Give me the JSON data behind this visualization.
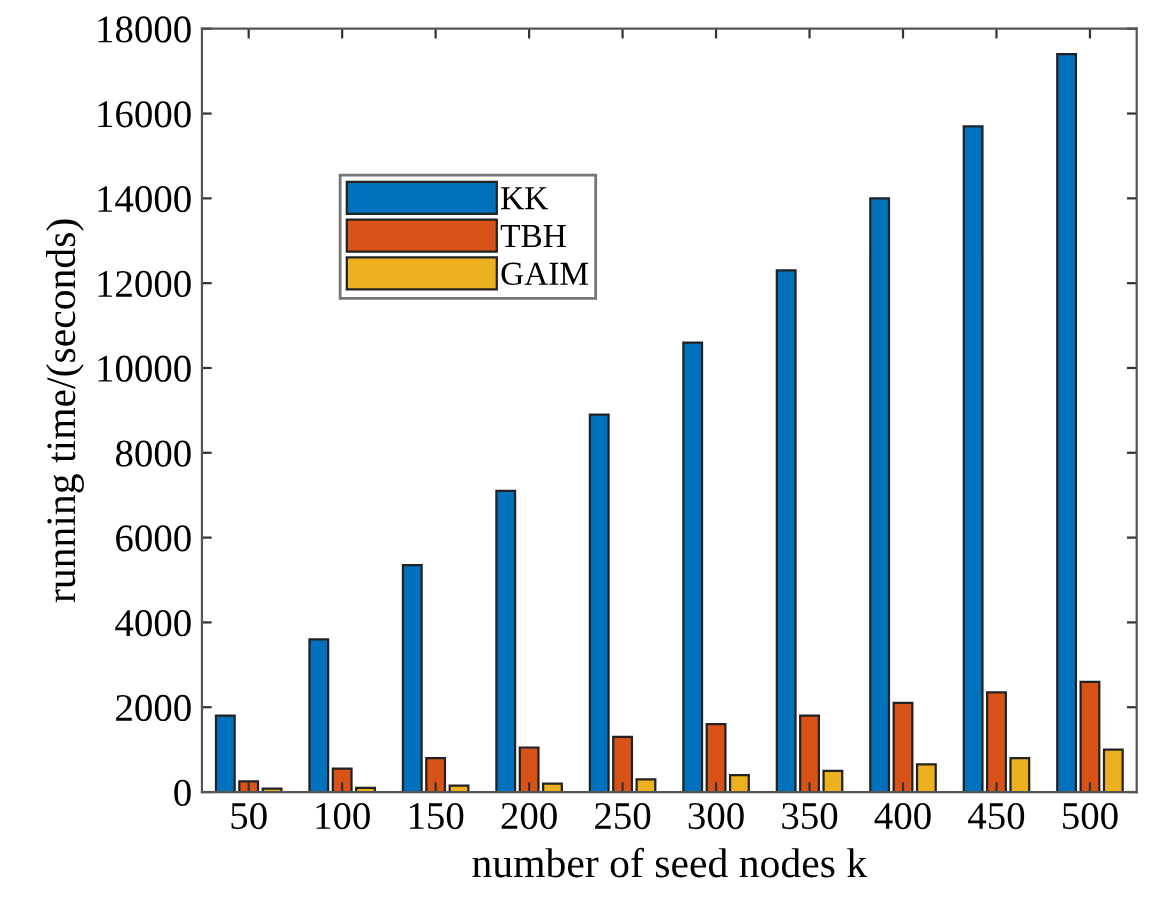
{
  "chart_data": {
    "type": "bar",
    "xlabel": "number of seed nodes k",
    "ylabel": "running time/(seconds)",
    "categories": [
      "50",
      "100",
      "150",
      "200",
      "250",
      "300",
      "350",
      "400",
      "450",
      "500"
    ],
    "series": [
      {
        "name": "KK",
        "color": "#0072bd",
        "values": [
          1800,
          3600,
          5350,
          7100,
          8900,
          10600,
          12300,
          14000,
          15700,
          17400
        ]
      },
      {
        "name": "TBH",
        "color": "#d95319",
        "values": [
          250,
          550,
          800,
          1050,
          1300,
          1600,
          1800,
          2100,
          2350,
          2600
        ]
      },
      {
        "name": "GAIM",
        "color": "#edb120",
        "values": [
          80,
          100,
          150,
          200,
          300,
          400,
          500,
          650,
          800,
          1000
        ]
      }
    ],
    "ylim": [
      0,
      18000
    ],
    "yticks": [
      0,
      2000,
      4000,
      6000,
      8000,
      10000,
      12000,
      14000,
      16000,
      18000
    ],
    "grid": false,
    "legend": "top left"
  }
}
